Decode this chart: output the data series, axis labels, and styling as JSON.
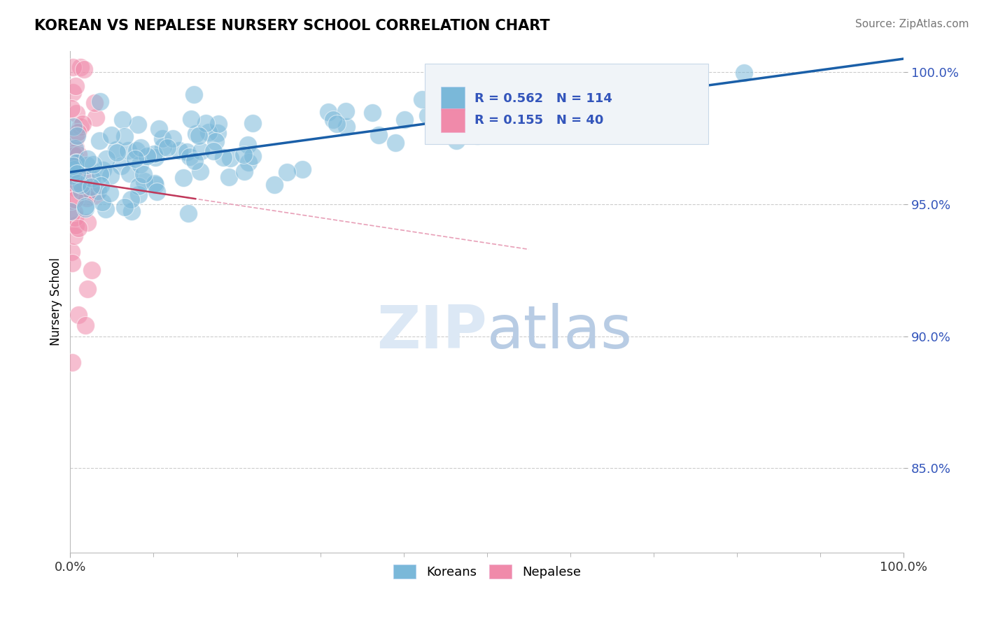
{
  "title": "KOREAN VS NEPALESE NURSERY SCHOOL CORRELATION CHART",
  "source": "Source: ZipAtlas.com",
  "ylabel": "Nursery School",
  "xlim": [
    0.0,
    1.0
  ],
  "ylim": [
    0.818,
    1.008
  ],
  "yticks": [
    0.85,
    0.9,
    0.95,
    1.0
  ],
  "ytick_labels": [
    "85.0%",
    "90.0%",
    "95.0%",
    "100.0%"
  ],
  "xtick_left": "0.0%",
  "xtick_right": "100.0%",
  "legend_r_korean": "R = 0.562",
  "legend_n_korean": "N = 114",
  "legend_r_nepalese": "R = 0.155",
  "legend_n_nepalese": "N = 40",
  "legend_label_korean": "Koreans",
  "legend_label_nepalese": "Nepalese",
  "korean_color": "#7ab8d9",
  "nepalese_color": "#f08aaa",
  "trend_korean_color": "#1a5fa8",
  "trend_nepalese_color": "#c0385a",
  "dashed_line_color": "#e8a0b8",
  "legend_bg_color": "#f0f4f8",
  "legend_border_color": "#c8d8e8",
  "background_color": "#ffffff",
  "ytick_color": "#3355bb",
  "xtick_color": "#333333",
  "grid_color": "#cccccc",
  "watermark_color": "#dce8f5",
  "title_fontsize": 15,
  "source_fontsize": 11,
  "tick_fontsize": 13,
  "ylabel_fontsize": 12
}
